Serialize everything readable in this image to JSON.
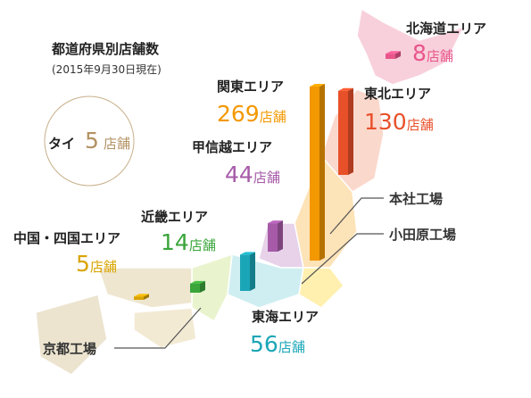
{
  "title": "都道府県別店舗数",
  "subtitle": "(2015年9月30日現在)",
  "unit": "店舗",
  "overseas": {
    "name": "タイ",
    "value": 5,
    "color": "#b39263"
  },
  "regions": [
    {
      "name": "北海道エリア",
      "value": 8,
      "color": "#e8558a"
    },
    {
      "name": "東北エリア",
      "value": 130,
      "color": "#e8502a"
    },
    {
      "name": "関東エリア",
      "value": 269,
      "color": "#f39800"
    },
    {
      "name": "甲信越エリア",
      "value": 44,
      "color": "#a65aa8"
    },
    {
      "name": "近畿エリア",
      "value": 14,
      "color": "#3aa53a"
    },
    {
      "name": "中国・四国エリア",
      "value": 5,
      "color": "#d9a400"
    },
    {
      "name": "東海エリア",
      "value": 56,
      "color": "#1aa6b7"
    }
  ],
  "factories": [
    "本社工場",
    "小田原工場",
    "京都工場"
  ]
}
